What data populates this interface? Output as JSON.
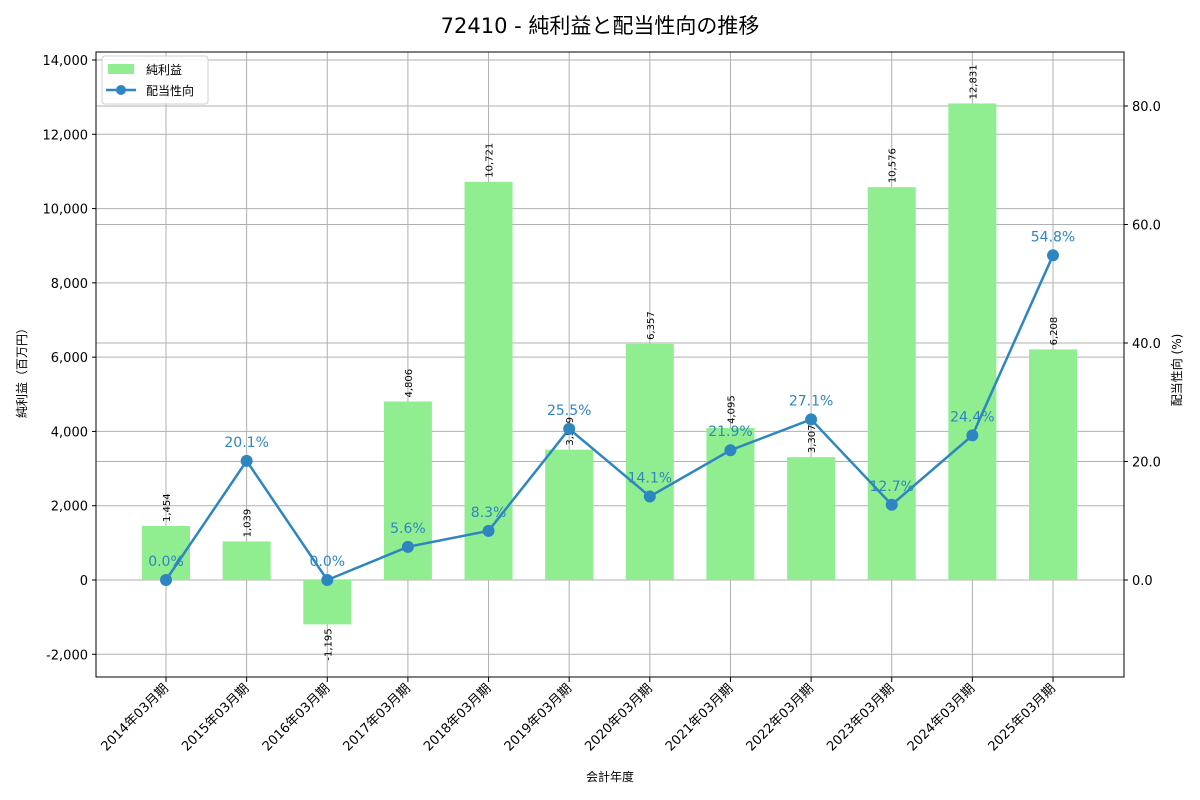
{
  "chart_data": {
    "type": "bar+line",
    "title": "72410 - 純利益と配当性向の推移",
    "xlabel": "会計年度",
    "ylabel": "純利益（百万円）",
    "y2label": "配当性向 (%)",
    "categories": [
      "2014年03月期",
      "2015年03月期",
      "2016年03月期",
      "2017年03月期",
      "2018年03月期",
      "2019年03月期",
      "2020年03月期",
      "2021年03月期",
      "2022年03月期",
      "2023年03月期",
      "2024年03月期",
      "2025年03月期"
    ],
    "series": [
      {
        "name": "純利益",
        "type": "bar",
        "axis": "left",
        "color": "#90ee90",
        "values": [
          1454,
          1039,
          -1195,
          4806,
          10721,
          3509,
          6357,
          4095,
          3307,
          10576,
          12831,
          6208
        ],
        "labels": [
          "1,454",
          "1,039",
          "-1,195",
          "4,806",
          "10,721",
          "3,509",
          "6,357",
          "4,095",
          "3,307",
          "10,576",
          "12,831",
          "6,208"
        ]
      },
      {
        "name": "配当性向",
        "type": "line",
        "axis": "right",
        "color": "#2e86c1",
        "values": [
          0.0,
          20.1,
          0.0,
          5.6,
          8.3,
          25.5,
          14.1,
          21.9,
          27.1,
          12.7,
          24.4,
          54.8
        ],
        "labels": [
          "0.0%",
          "20.1%",
          "0.0%",
          "5.6%",
          "8.3%",
          "25.5%",
          "14.1%",
          "21.9%",
          "27.1%",
          "12.7%",
          "24.4%",
          "54.8%"
        ]
      }
    ],
    "ylim": [
      -2600,
      14200
    ],
    "y2lim": [
      -16.4,
      88.9
    ],
    "yticks": [
      -2000,
      0,
      2000,
      4000,
      6000,
      8000,
      10000,
      12000,
      14000
    ],
    "ytick_labels": [
      "-2,000",
      "0",
      "2,000",
      "4,000",
      "6,000",
      "8,000",
      "10,000",
      "12,000",
      "14,000"
    ],
    "y2ticks": [
      0,
      20,
      40,
      60,
      80
    ],
    "y2tick_labels": [
      "0.0",
      "20.0",
      "40.0",
      "60.0",
      "80.0"
    ],
    "grid": true,
    "legend_position": "upper left"
  },
  "legend": {
    "bar_label": "純利益",
    "line_label": "配当性向"
  }
}
